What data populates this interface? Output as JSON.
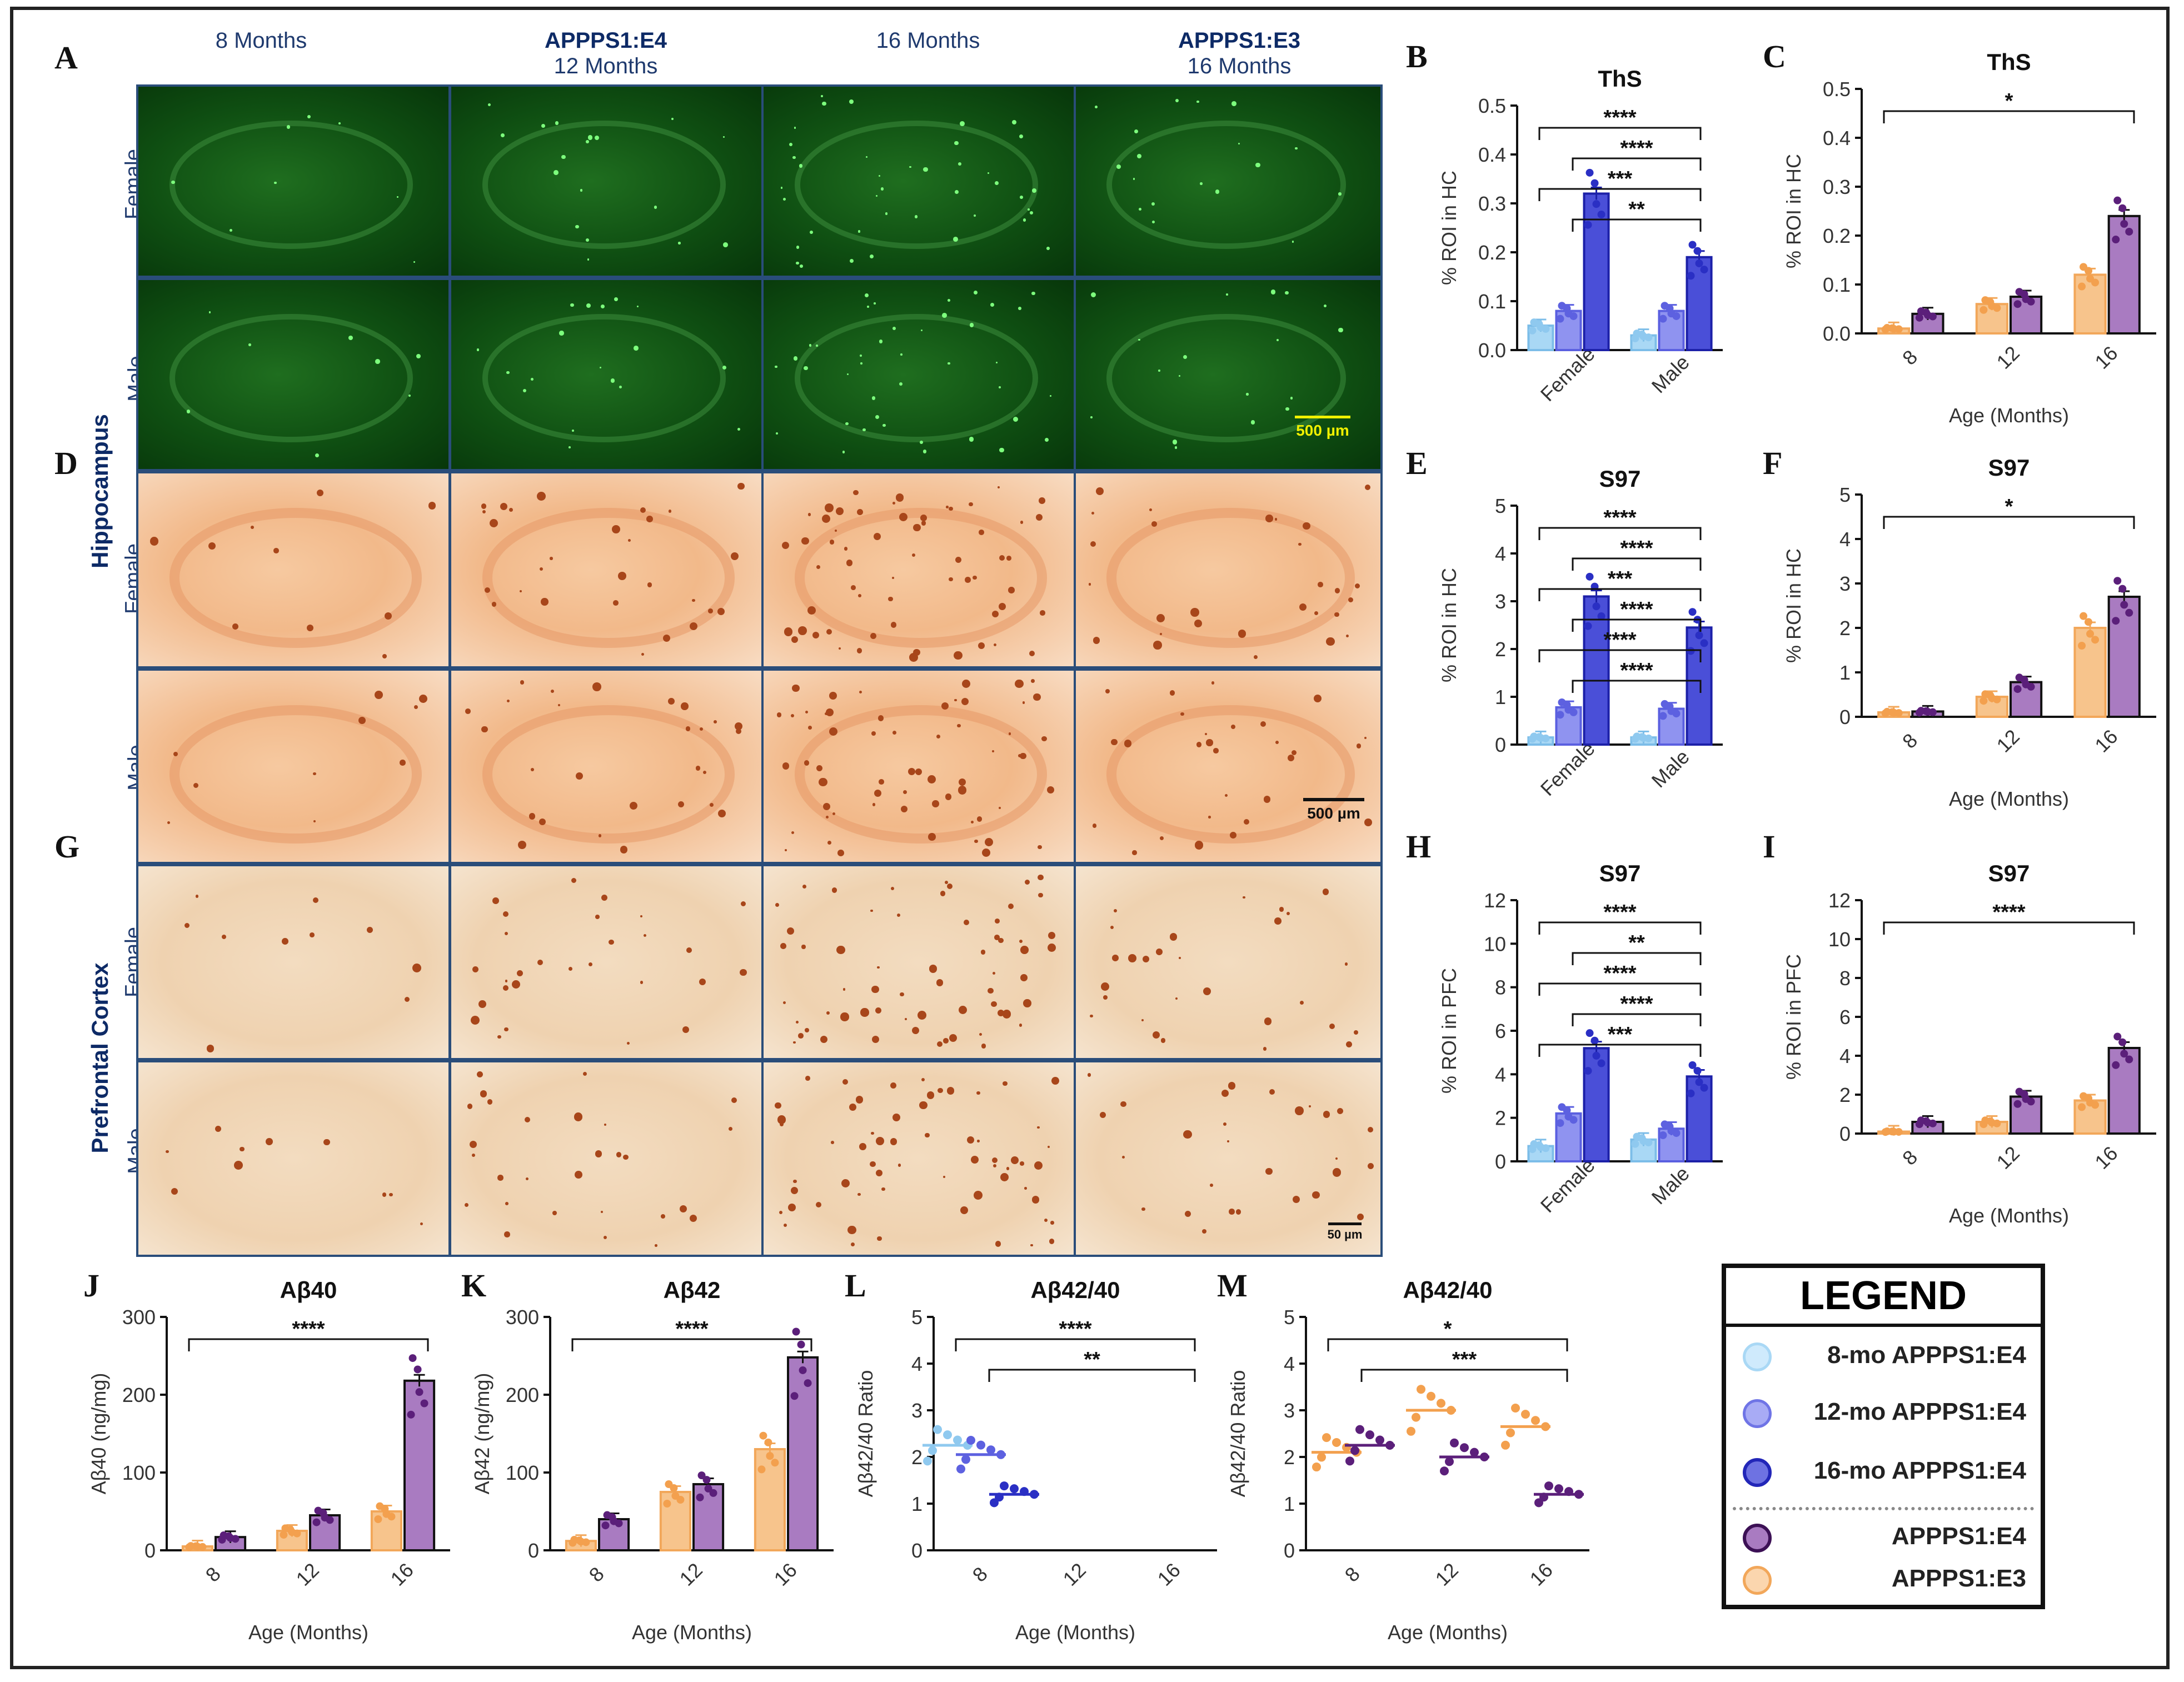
{
  "panel_letters": [
    "A",
    "B",
    "C",
    "D",
    "E",
    "F",
    "G",
    "H",
    "I",
    "J",
    "K",
    "L",
    "M"
  ],
  "columns": [
    {
      "bold": "",
      "sub": "8 Months"
    },
    {
      "bold": "APPPS1:E4",
      "sub": "12 Months"
    },
    {
      "bold": "",
      "sub": "16 Months"
    },
    {
      "bold": "APPPS1:E3",
      "sub": "16 Months"
    }
  ],
  "rows": {
    "female": "Female",
    "male": "Male"
  },
  "sections": {
    "hippocampus": "Hippocampus",
    "pfc": "Prefrontal Cortex"
  },
  "scalebars": {
    "ths": "500 µm",
    "s97_hc": "500 µm",
    "s97_pfc": "50 µm"
  },
  "colors": {
    "c8": "#a9d8f5",
    "c12": "#8f93f0",
    "c16": "#4a4fd8",
    "e4": "#a97bc1",
    "e3": "#f7c48c",
    "e4_dot": "#5b1f7a",
    "e3_dot": "#f3a04e",
    "blue_dot": "#2a2fc4"
  },
  "legend": {
    "title": "LEGEND",
    "items": [
      "8-mo APPPS1:E4",
      "12-mo APPPS1:E4",
      "16-mo APPPS1:E4",
      "APPPS1:E4",
      "APPPS1:E3"
    ]
  },
  "chart_data": [
    {
      "id": "B",
      "type": "bar",
      "title": "ThS",
      "ylabel": "% ROI in HC",
      "ylim": [
        0,
        0.5
      ],
      "yticks": [
        "0.0",
        "0.1",
        "0.2",
        "0.3",
        "0.4",
        "0.5"
      ],
      "categories": [
        "Female",
        "Male"
      ],
      "series": [
        {
          "name": "8-mo APPPS1:E4",
          "values": [
            0.05,
            0.03
          ]
        },
        {
          "name": "12-mo APPPS1:E4",
          "values": [
            0.08,
            0.08
          ]
        },
        {
          "name": "16-mo APPPS1:E4",
          "values": [
            0.32,
            0.19
          ]
        }
      ],
      "annotations": [
        "****",
        "****",
        "***",
        "**"
      ]
    },
    {
      "id": "C",
      "type": "bar",
      "title": "ThS",
      "xlabel": "Age (Months)",
      "ylabel": "% ROI in HC",
      "ylim": [
        0,
        0.5
      ],
      "yticks": [
        "0.0",
        "0.1",
        "0.2",
        "0.3",
        "0.4",
        "0.5"
      ],
      "categories": [
        "8",
        "12",
        "16"
      ],
      "series": [
        {
          "name": "APPPS1:E3",
          "values": [
            0.01,
            0.06,
            0.12
          ]
        },
        {
          "name": "APPPS1:E4",
          "values": [
            0.04,
            0.075,
            0.24
          ]
        }
      ],
      "annotations": [
        "*"
      ]
    },
    {
      "id": "E",
      "type": "bar",
      "title": "S97",
      "ylabel": "% ROI in HC",
      "ylim": [
        0,
        5
      ],
      "yticks": [
        "0",
        "1",
        "2",
        "3",
        "4",
        "5"
      ],
      "categories": [
        "Female",
        "Male"
      ],
      "series": [
        {
          "name": "8-mo APPPS1:E4",
          "values": [
            0.15,
            0.15
          ]
        },
        {
          "name": "12-mo APPPS1:E4",
          "values": [
            0.78,
            0.75
          ]
        },
        {
          "name": "16-mo APPPS1:E4",
          "values": [
            3.1,
            2.45
          ]
        }
      ],
      "annotations": [
        "****",
        "****",
        "***",
        "****",
        "****",
        "****"
      ]
    },
    {
      "id": "F",
      "type": "bar",
      "title": "S97",
      "xlabel": "Age (Months)",
      "ylabel": "% ROI in HC",
      "ylim": [
        0,
        5
      ],
      "yticks": [
        "0",
        "1",
        "2",
        "3",
        "4",
        "5"
      ],
      "categories": [
        "8",
        "12",
        "16"
      ],
      "series": [
        {
          "name": "APPPS1:E3",
          "values": [
            0.1,
            0.45,
            2.0
          ]
        },
        {
          "name": "APPPS1:E4",
          "values": [
            0.12,
            0.78,
            2.7
          ]
        }
      ],
      "annotations": [
        "*"
      ]
    },
    {
      "id": "H",
      "type": "bar",
      "title": "S97",
      "ylabel": "% ROI in PFC",
      "ylim": [
        0,
        12
      ],
      "yticks": [
        "0",
        "2",
        "4",
        "6",
        "8",
        "10",
        "12"
      ],
      "categories": [
        "Female",
        "Male"
      ],
      "series": [
        {
          "name": "8-mo APPPS1:E4",
          "values": [
            0.7,
            1.0
          ]
        },
        {
          "name": "12-mo APPPS1:E4",
          "values": [
            2.2,
            1.5
          ]
        },
        {
          "name": "16-mo APPPS1:E4",
          "values": [
            5.2,
            3.9
          ]
        }
      ],
      "annotations": [
        "****",
        "**",
        "****",
        "****",
        "***"
      ]
    },
    {
      "id": "I",
      "type": "bar",
      "title": "S97",
      "xlabel": "Age (Months)",
      "ylabel": "% ROI in PFC",
      "ylim": [
        0,
        12
      ],
      "yticks": [
        "0",
        "2",
        "4",
        "6",
        "8",
        "10",
        "12"
      ],
      "categories": [
        "8",
        "12",
        "16"
      ],
      "series": [
        {
          "name": "APPPS1:E3",
          "values": [
            0.1,
            0.6,
            1.7
          ]
        },
        {
          "name": "APPPS1:E4",
          "values": [
            0.6,
            1.9,
            4.4
          ]
        }
      ],
      "annotations": [
        "****"
      ]
    },
    {
      "id": "J",
      "type": "bar",
      "title": "Aβ40",
      "xlabel": "Age (Months)",
      "ylabel": "Aβ40 (ng/mg)",
      "ylim": [
        0,
        300
      ],
      "yticks": [
        "0",
        "100",
        "200",
        "300"
      ],
      "categories": [
        "8",
        "12",
        "16"
      ],
      "series": [
        {
          "name": "APPPS1:E3",
          "values": [
            5,
            25,
            50
          ]
        },
        {
          "name": "APPPS1:E4",
          "values": [
            17,
            45,
            218
          ]
        }
      ],
      "annotations": [
        "****"
      ]
    },
    {
      "id": "K",
      "type": "bar",
      "title": "Aβ42",
      "xlabel": "Age (Months)",
      "ylabel": "Aβ42 (ng/mg)",
      "ylim": [
        0,
        300
      ],
      "yticks": [
        "0",
        "100",
        "200",
        "300"
      ],
      "categories": [
        "8",
        "12",
        "16"
      ],
      "series": [
        {
          "name": "APPPS1:E3",
          "values": [
            12,
            75,
            130
          ]
        },
        {
          "name": "APPPS1:E4",
          "values": [
            40,
            85,
            248
          ]
        }
      ],
      "annotations": [
        "****"
      ]
    },
    {
      "id": "L",
      "type": "scatter",
      "title": "Aβ42/40",
      "xlabel": "Age (Months)",
      "ylabel": "Aβ42/40 Ratio",
      "ylim": [
        0,
        5
      ],
      "yticks": [
        "0",
        "1",
        "2",
        "3",
        "4",
        "5"
      ],
      "categories": [
        "8",
        "12",
        "16"
      ],
      "series": [
        {
          "name": "8-mo APPPS1:E4",
          "values": [
            2.25
          ]
        },
        {
          "name": "12-mo APPPS1:E4",
          "values": [
            2.05
          ]
        },
        {
          "name": "16-mo APPPS1:E4",
          "values": [
            1.2
          ]
        }
      ],
      "annotations": [
        "****",
        "**"
      ]
    },
    {
      "id": "M",
      "type": "scatter",
      "title": "Aβ42/40",
      "xlabel": "Age (Months)",
      "ylabel": "Aβ42/40 Ratio",
      "ylim": [
        0,
        5
      ],
      "yticks": [
        "0",
        "1",
        "2",
        "3",
        "4",
        "5"
      ],
      "categories": [
        "8",
        "12",
        "16"
      ],
      "series": [
        {
          "name": "APPPS1:E3",
          "values": [
            2.1,
            3.0,
            2.65
          ]
        },
        {
          "name": "APPPS1:E4",
          "values": [
            2.25,
            2.0,
            1.2
          ]
        }
      ],
      "annotations": [
        "*",
        "***"
      ]
    }
  ]
}
